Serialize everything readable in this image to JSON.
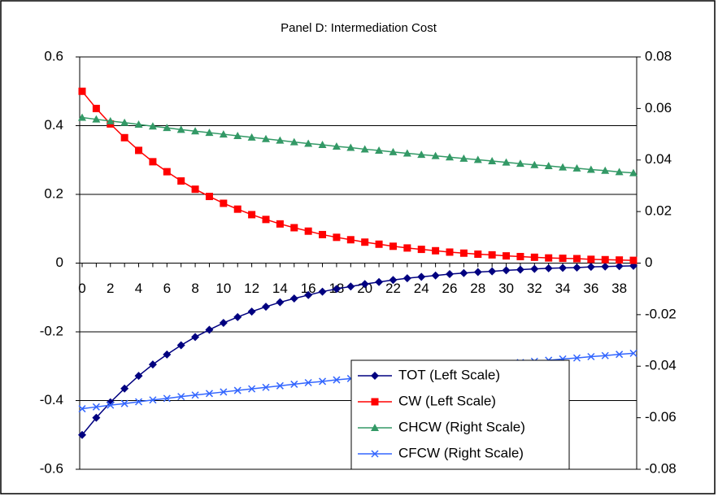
{
  "chart_data": {
    "type": "line",
    "title": "Panel D: Intermediation Cost",
    "categories": [
      0,
      null,
      2,
      null,
      4,
      null,
      6,
      null,
      8,
      null,
      10,
      null,
      12,
      null,
      14,
      null,
      16,
      null,
      18,
      null,
      20,
      null,
      22,
      null,
      24,
      null,
      26,
      null,
      28,
      null,
      30,
      null,
      32,
      null,
      34,
      null,
      36,
      null,
      38,
      null
    ],
    "ylim": [
      -0.6,
      0.6
    ],
    "yticks": [
      -0.6,
      -0.4,
      -0.2,
      0,
      0.2,
      0.4,
      0.6
    ],
    "y2lim": [
      -0.08,
      0.08
    ],
    "y2ticks": [
      -0.08,
      -0.06,
      -0.04,
      -0.02,
      0,
      0.02,
      0.04,
      0.06,
      0.08
    ],
    "grid": true,
    "legend": "lower-center",
    "series": [
      {
        "name": "TOT (Left Scale)",
        "color": "#000080",
        "marker": "diamond",
        "values": [
          -0.5,
          -0.45,
          -0.405,
          -0.365,
          -0.328,
          -0.295,
          -0.266,
          -0.239,
          -0.215,
          -0.194,
          -0.174,
          -0.157,
          -0.141,
          -0.127,
          -0.114,
          -0.103,
          -0.093,
          -0.083,
          -0.075,
          -0.068,
          -0.061,
          -0.055,
          -0.049,
          -0.044,
          -0.04,
          -0.036,
          -0.032,
          -0.029,
          -0.026,
          -0.024,
          -0.021,
          -0.019,
          -0.017,
          -0.015,
          -0.014,
          -0.013,
          -0.011,
          -0.01,
          -0.009,
          -0.008
        ]
      },
      {
        "name": "CW (Left Scale)",
        "color": "#ff0000",
        "marker": "square",
        "values": [
          0.5,
          0.45,
          0.405,
          0.365,
          0.328,
          0.295,
          0.266,
          0.239,
          0.215,
          0.194,
          0.174,
          0.157,
          0.141,
          0.127,
          0.114,
          0.103,
          0.093,
          0.083,
          0.075,
          0.068,
          0.061,
          0.055,
          0.049,
          0.044,
          0.04,
          0.036,
          0.032,
          0.029,
          0.026,
          0.024,
          0.021,
          0.019,
          0.017,
          0.015,
          0.014,
          0.013,
          0.011,
          0.01,
          0.009,
          0.008
        ]
      },
      {
        "name": "CHCW (Right Scale)",
        "color": "#339966",
        "marker": "triangle",
        "axis": "y2",
        "values": [
          0.0565,
          0.0558,
          0.0551,
          0.0545,
          0.0538,
          0.0531,
          0.0525,
          0.0518,
          0.0512,
          0.0506,
          0.05,
          0.0494,
          0.0488,
          0.0482,
          0.0476,
          0.047,
          0.0464,
          0.0459,
          0.0453,
          0.0448,
          0.0442,
          0.0437,
          0.0431,
          0.0426,
          0.0421,
          0.0416,
          0.0411,
          0.0406,
          0.0401,
          0.0396,
          0.0391,
          0.0386,
          0.0381,
          0.0377,
          0.0372,
          0.0368,
          0.0363,
          0.0359,
          0.0354,
          0.035
        ]
      },
      {
        "name": "CFCW (Right Scale)",
        "color": "#3366ff",
        "marker": "x",
        "axis": "y2",
        "values": [
          -0.0565,
          -0.0558,
          -0.0551,
          -0.0545,
          -0.0538,
          -0.0531,
          -0.0525,
          -0.0518,
          -0.0512,
          -0.0506,
          -0.05,
          -0.0494,
          -0.0488,
          -0.0482,
          -0.0476,
          -0.047,
          -0.0464,
          -0.0459,
          -0.0453,
          -0.0448,
          -0.0442,
          -0.0437,
          -0.0431,
          -0.0426,
          -0.0421,
          -0.0416,
          -0.0411,
          -0.0406,
          -0.0401,
          -0.0396,
          -0.0391,
          -0.0386,
          -0.0381,
          -0.0377,
          -0.0372,
          -0.0368,
          -0.0363,
          -0.0359,
          -0.0354,
          -0.035
        ]
      }
    ]
  }
}
